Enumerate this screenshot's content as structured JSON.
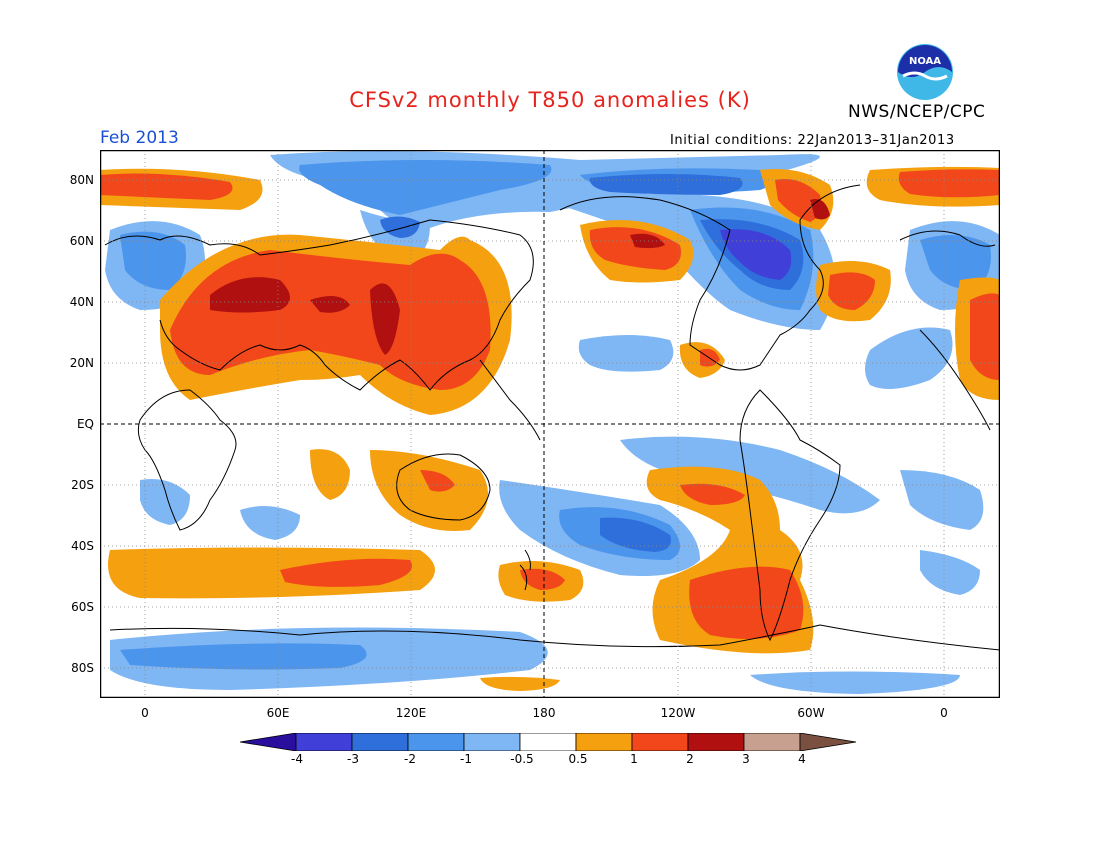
{
  "title": "CFSv2 monthly T850 anomalies (K)",
  "agency": "NWS/NCEP/CPC",
  "logo_text": "NOAA",
  "month_label": "Feb 2013",
  "initial_conditions": "Initial conditions: 22Jan2013–31Jan2013",
  "lat_labels": [
    "80N",
    "60N",
    "40N",
    "20N",
    "EQ",
    "20S",
    "40S",
    "60S",
    "80S"
  ],
  "lon_labels": [
    "0",
    "60E",
    "120E",
    "180",
    "120W",
    "60W",
    "0"
  ],
  "colorbar": {
    "tick_labels": [
      "-4",
      "-3",
      "-2",
      "-1",
      "-0.5",
      "0.5",
      "1",
      "2",
      "3",
      "4"
    ],
    "colors": [
      "#2a0f9f",
      "#4040d8",
      "#2f6fdc",
      "#4b95ec",
      "#7fb6f4",
      "#ffffff",
      "#f5a00f",
      "#f2471a",
      "#b0100f",
      "#c8a090",
      "#7a5040"
    ]
  },
  "palette": {
    "warm1": "#f5a00f",
    "warm2": "#f2471a",
    "warm3": "#b0100f",
    "cool1": "#7fb6f4",
    "cool2": "#4b95ec",
    "cool3": "#2f6fdc",
    "cool4": "#4040d8"
  }
}
